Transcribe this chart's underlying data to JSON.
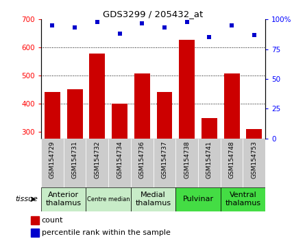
{
  "title": "GDS3299 / 205432_at",
  "samples": [
    "GSM154729",
    "GSM154731",
    "GSM154732",
    "GSM154734",
    "GSM154736",
    "GSM154737",
    "GSM154738",
    "GSM154741",
    "GSM154748",
    "GSM154753"
  ],
  "counts": [
    440,
    450,
    578,
    400,
    507,
    440,
    628,
    348,
    507,
    308
  ],
  "percentiles": [
    95,
    93,
    98,
    88,
    97,
    93,
    98,
    85,
    95,
    87
  ],
  "ymin": 275,
  "ymax": 700,
  "yticks_left": [
    300,
    400,
    500,
    600,
    700
  ],
  "yticks_right": [
    0,
    25,
    50,
    75,
    100
  ],
  "bar_color": "#cc0000",
  "dot_color": "#0000cc",
  "group_defs": [
    {
      "label": "Anterior\nthalamus",
      "indices": [
        0,
        1
      ],
      "color": "#c8ecc8",
      "fontsize": 8
    },
    {
      "label": "Centre median",
      "indices": [
        2,
        3
      ],
      "color": "#c8ecc8",
      "fontsize": 6
    },
    {
      "label": "Medial\nthalamus",
      "indices": [
        4,
        5
      ],
      "color": "#c8ecc8",
      "fontsize": 8
    },
    {
      "label": "Pulvinar",
      "indices": [
        6,
        7
      ],
      "color": "#44dd44",
      "fontsize": 8
    },
    {
      "label": "Ventral\nthalamus",
      "indices": [
        8,
        9
      ],
      "color": "#44dd44",
      "fontsize": 8
    }
  ],
  "tissue_label": "tissue",
  "legend_count": "count",
  "legend_percentile": "percentile rank within the sample",
  "xticklabel_bg": "#cccccc",
  "bar_bottom": 300
}
